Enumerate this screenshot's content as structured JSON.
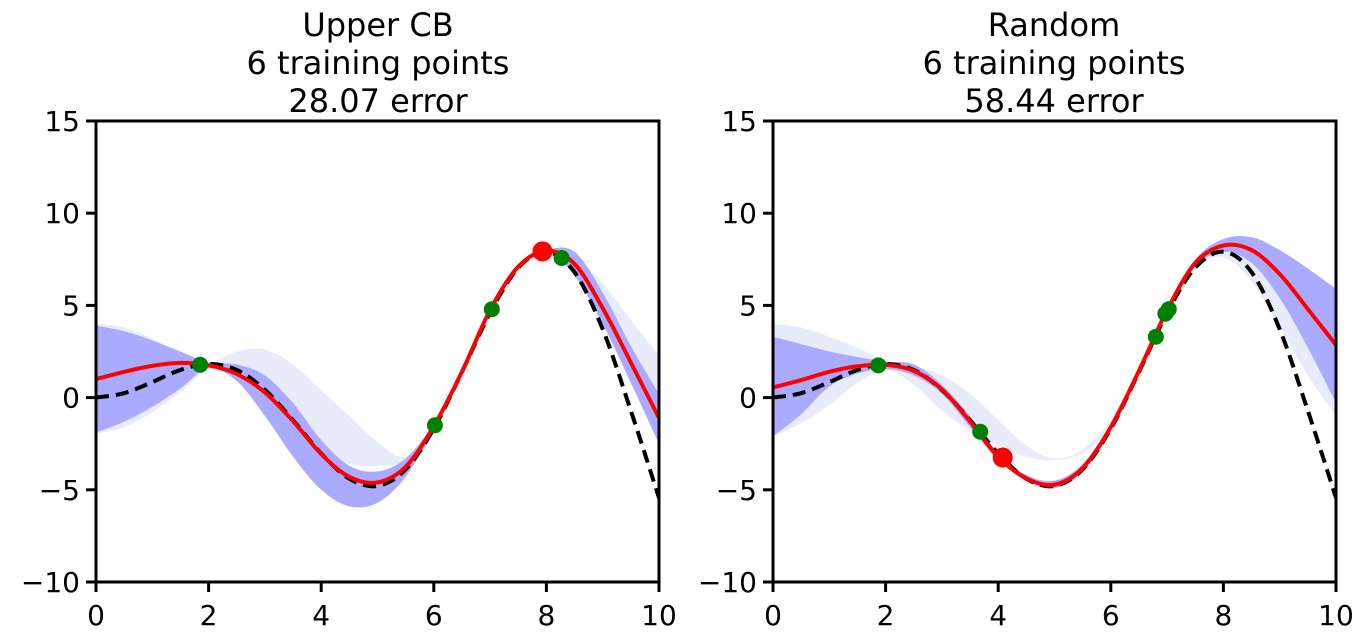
{
  "chart_data": [
    {
      "type": "line",
      "title_lines": [
        "Upper CB",
        "6 training points",
        "28.07 error"
      ],
      "xlim": [
        0,
        10
      ],
      "ylim": [
        -10,
        15
      ],
      "xticks": [
        0,
        2,
        4,
        6,
        8,
        10
      ],
      "yticks": [
        -10,
        -5,
        0,
        5,
        10,
        15
      ],
      "xtick_labels": [
        "0",
        "2",
        "4",
        "6",
        "8",
        "10"
      ],
      "ytick_labels": [
        "−10",
        "−5",
        "0",
        "5",
        "10",
        "15"
      ],
      "grid": false,
      "series": [
        {
          "role": "true_function",
          "style": "dashed",
          "color": "#000000",
          "x": [
            0,
            0.5,
            1,
            1.5,
            2,
            2.5,
            3,
            3.5,
            4,
            4.5,
            5,
            5.5,
            6,
            6.5,
            7,
            7.5,
            8,
            8.5,
            9,
            9.5,
            10
          ],
          "y": [
            0,
            0.24,
            0.84,
            1.5,
            1.82,
            1.5,
            0.42,
            -1.23,
            -3.03,
            -4.4,
            -4.79,
            -3.89,
            -1.68,
            1.39,
            4.6,
            7.04,
            7.91,
            6.8,
            3.71,
            -0.71,
            -5.44
          ]
        },
        {
          "role": "band_previous",
          "color": "#e8ebfa",
          "x": [
            0,
            0.5,
            1,
            1.5,
            2,
            2.5,
            3,
            3.5,
            4,
            4.5,
            5,
            5.5,
            6,
            6.5,
            7,
            7.5,
            8,
            8.5,
            9,
            9.5,
            10
          ],
          "lower": [
            -2,
            -1.6,
            -0.8,
            0.3,
            1.5,
            1.3,
            0.2,
            -1.4,
            -2.8,
            -3.6,
            -3.7,
            -3.4,
            -1.6,
            1.3,
            4.6,
            7.0,
            7.7,
            6.9,
            4.6,
            2.0,
            -0.5
          ],
          "upper": [
            4,
            3.8,
            3.2,
            2.4,
            1.9,
            2.5,
            2.6,
            1.8,
            0.4,
            -1.0,
            -2.4,
            -3.2,
            -1.4,
            1.5,
            4.8,
            7.2,
            8.0,
            7.6,
            6.2,
            4.2,
            2.3
          ]
        },
        {
          "role": "band_current",
          "color": "#aaaaff",
          "x": [
            0,
            0.5,
            1,
            1.5,
            2,
            2.5,
            3,
            3.5,
            4,
            4.5,
            5,
            5.5,
            6,
            6.5,
            7,
            7.5,
            8,
            8.5,
            9,
            9.5,
            10
          ],
          "lower": [
            -1.9,
            -1.3,
            -0.5,
            0.5,
            1.6,
            0.9,
            -1.0,
            -3.2,
            -5.0,
            -5.9,
            -5.7,
            -4.3,
            -1.7,
            1.3,
            4.6,
            7.0,
            7.9,
            6.6,
            4.0,
            0.8,
            -2.5
          ],
          "upper": [
            3.9,
            3.6,
            3.1,
            2.5,
            1.9,
            1.8,
            1.2,
            -0.3,
            -2.3,
            -3.7,
            -4.0,
            -3.3,
            -1.4,
            1.5,
            4.9,
            7.2,
            8.0,
            7.9,
            5.7,
            2.8,
            0.2
          ]
        },
        {
          "role": "prediction",
          "style": "solid",
          "color": "#ff0000",
          "x": [
            0,
            0.5,
            1,
            1.5,
            2,
            2.5,
            3,
            3.5,
            4,
            4.5,
            5,
            5.5,
            6,
            6.5,
            7,
            7.5,
            8,
            8.5,
            9,
            9.5,
            10
          ],
          "y": [
            1.0,
            1.4,
            1.72,
            1.88,
            1.75,
            1.28,
            0.28,
            -1.28,
            -3.06,
            -4.3,
            -4.6,
            -3.75,
            -1.55,
            1.4,
            4.75,
            7.1,
            7.96,
            7.25,
            4.85,
            1.9,
            -1.1
          ]
        }
      ],
      "training_points": {
        "color": "#008000",
        "x": [
          1.85,
          6.02,
          7.03,
          8.27
        ],
        "y": [
          1.78,
          -1.5,
          4.79,
          7.57
        ]
      },
      "next_point": {
        "color": "#ff0000",
        "x": [
          7.93
        ],
        "y": [
          7.93
        ]
      }
    },
    {
      "type": "line",
      "title_lines": [
        "Random",
        "6 training points",
        "58.44 error"
      ],
      "xlim": [
        0,
        10
      ],
      "ylim": [
        -10,
        15
      ],
      "xticks": [
        0,
        2,
        4,
        6,
        8,
        10
      ],
      "yticks": [
        -10,
        -5,
        0,
        5,
        10,
        15
      ],
      "xtick_labels": [
        "0",
        "2",
        "4",
        "6",
        "8",
        "10"
      ],
      "ytick_labels": [
        "−10",
        "−5",
        "0",
        "5",
        "10",
        "15"
      ],
      "grid": false,
      "series": [
        {
          "role": "true_function",
          "style": "dashed",
          "color": "#000000",
          "x": [
            0,
            0.5,
            1,
            1.5,
            2,
            2.5,
            3,
            3.5,
            4,
            4.5,
            5,
            5.5,
            6,
            6.5,
            7,
            7.5,
            8,
            8.5,
            9,
            9.5,
            10
          ],
          "y": [
            0,
            0.24,
            0.84,
            1.5,
            1.82,
            1.5,
            0.42,
            -1.23,
            -3.03,
            -4.4,
            -4.79,
            -3.89,
            -1.68,
            1.39,
            4.6,
            7.04,
            7.91,
            6.8,
            3.71,
            -0.71,
            -5.44
          ]
        },
        {
          "role": "band_previous",
          "color": "#e8ebfa",
          "x": [
            0,
            0.5,
            1,
            1.5,
            2,
            2.5,
            3,
            3.5,
            4,
            4.5,
            5,
            5.5,
            6,
            6.5,
            7,
            7.5,
            8,
            8.5,
            9,
            9.5,
            10
          ],
          "lower": [
            -2.1,
            -1.4,
            -0.4,
            0.8,
            1.5,
            0.7,
            -0.7,
            -1.8,
            -2.6,
            -3.2,
            -3.4,
            -3.0,
            -1.6,
            1.3,
            4.6,
            7.0,
            7.6,
            6.3,
            3.8,
            1.2,
            -1.0
          ],
          "upper": [
            4.0,
            3.8,
            3.3,
            2.7,
            2.0,
            1.7,
            1.2,
            0.2,
            -1.2,
            -2.6,
            -3.3,
            -2.8,
            -1.2,
            1.6,
            4.9,
            7.3,
            8.2,
            8.1,
            7.0,
            5.6,
            4.0
          ]
        },
        {
          "role": "band_current",
          "color": "#aaaaff",
          "x": [
            0,
            0.5,
            1,
            1.5,
            2,
            2.5,
            3,
            3.5,
            4,
            4.5,
            5,
            5.5,
            6,
            6.5,
            7,
            7.5,
            8,
            8.5,
            9,
            9.5,
            10
          ],
          "lower": [
            -2.1,
            -0.9,
            0.6,
            1.3,
            1.55,
            1.2,
            0.2,
            -1.6,
            -3.4,
            -4.5,
            -4.9,
            -4.0,
            -1.8,
            1.3,
            4.6,
            7.1,
            7.9,
            7.3,
            5.4,
            2.7,
            -0.3
          ],
          "upper": [
            3.3,
            2.9,
            2.5,
            2.2,
            1.95,
            1.8,
            0.7,
            -1.0,
            -3.0,
            -4.2,
            -4.5,
            -3.6,
            -1.4,
            1.6,
            4.9,
            7.5,
            8.6,
            8.7,
            8.0,
            7.0,
            5.9
          ]
        },
        {
          "role": "prediction",
          "style": "solid",
          "color": "#ff0000",
          "x": [
            0,
            0.5,
            1,
            1.5,
            2,
            2.5,
            3,
            3.5,
            4,
            4.5,
            5,
            5.5,
            6,
            6.5,
            7,
            7.5,
            8,
            8.5,
            9,
            9.5,
            10
          ],
          "y": [
            0.55,
            0.95,
            1.4,
            1.7,
            1.78,
            1.45,
            0.45,
            -1.3,
            -3.2,
            -4.38,
            -4.72,
            -3.82,
            -1.6,
            1.45,
            4.75,
            7.3,
            8.25,
            8.0,
            6.7,
            4.8,
            2.85
          ]
        }
      ],
      "training_points": {
        "color": "#008000",
        "x": [
          1.87,
          3.68,
          6.8,
          6.97,
          7.03
        ],
        "y": [
          1.75,
          -1.85,
          3.3,
          4.55,
          4.8
        ]
      },
      "next_point": {
        "color": "#ff0000",
        "x": [
          4.08
        ],
        "y": [
          -3.25
        ]
      }
    }
  ]
}
